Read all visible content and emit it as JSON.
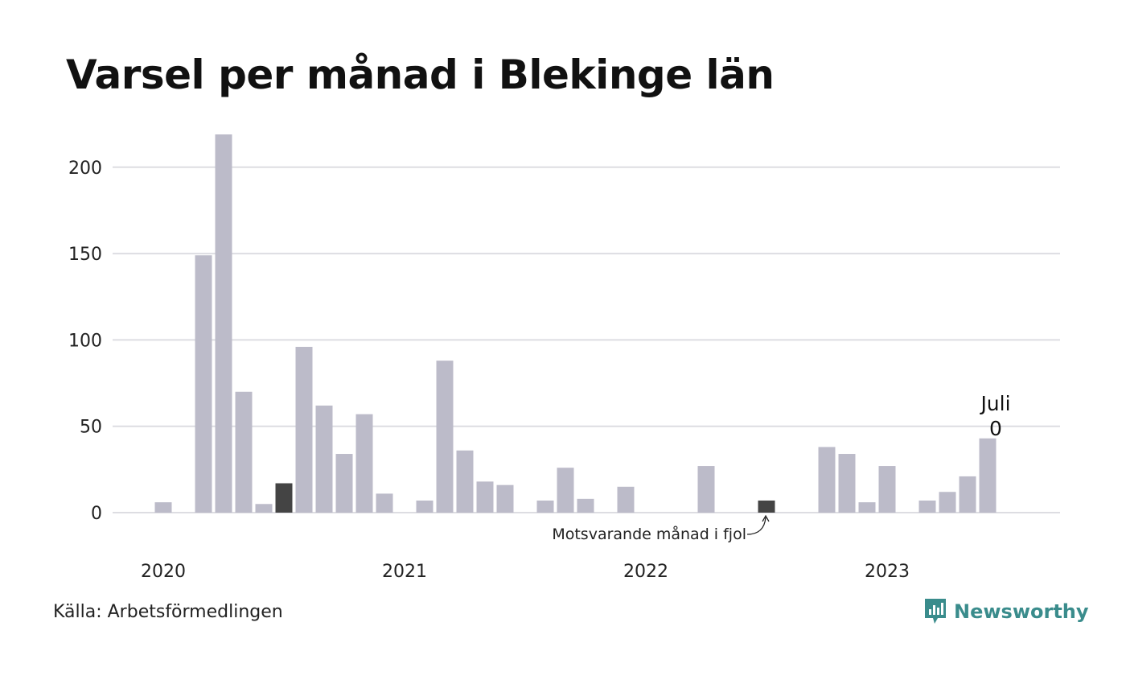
{
  "source": "Källa: Arbetsförmedlingen",
  "brand": {
    "name": "Newsworthy",
    "color": "#3a8c8c",
    "icon": "bar-chart-bubble-icon"
  },
  "colors": {
    "bar": "#bcbbc9",
    "highlight": "#444444",
    "grid": "#dddde2"
  },
  "chart_data": {
    "type": "bar",
    "title": "Varsel per månad i Blekinge län",
    "xlabel": "",
    "ylabel": "",
    "ylim": [
      0,
      220
    ],
    "yticks": [
      0,
      50,
      100,
      150,
      200
    ],
    "grid": true,
    "year_labels": [
      {
        "label": "2020",
        "month_index": 0
      },
      {
        "label": "2021",
        "month_index": 12
      },
      {
        "label": "2022",
        "month_index": 24
      },
      {
        "label": "2023",
        "month_index": 36
      }
    ],
    "months": [
      "2020-01",
      "2020-02",
      "2020-03",
      "2020-04",
      "2020-05",
      "2020-06",
      "2020-07",
      "2020-08",
      "2020-09",
      "2020-10",
      "2020-11",
      "2020-12",
      "2021-01",
      "2021-02",
      "2021-03",
      "2021-04",
      "2021-05",
      "2021-06",
      "2021-07",
      "2021-08",
      "2021-09",
      "2021-10",
      "2021-11",
      "2021-12",
      "2022-01",
      "2022-02",
      "2022-03",
      "2022-04",
      "2022-05",
      "2022-06",
      "2022-07",
      "2022-08",
      "2022-09",
      "2022-10",
      "2022-11",
      "2022-12",
      "2023-01",
      "2023-02",
      "2023-03",
      "2023-04",
      "2023-05",
      "2023-06",
      "2023-07"
    ],
    "values": [
      0,
      6,
      0,
      149,
      219,
      70,
      5,
      17,
      96,
      62,
      34,
      57,
      11,
      0,
      7,
      88,
      36,
      18,
      16,
      0,
      7,
      26,
      8,
      0,
      15,
      0,
      0,
      0,
      27,
      0,
      0,
      7,
      0,
      0,
      38,
      34,
      6,
      27,
      0,
      7,
      12,
      21,
      43
    ],
    "highlight_indices": [
      7,
      31
    ],
    "annotation": {
      "text": "Motsvarande månad i fjol",
      "target_index": 31
    },
    "callout": {
      "label": "Juli",
      "value": "0"
    }
  }
}
